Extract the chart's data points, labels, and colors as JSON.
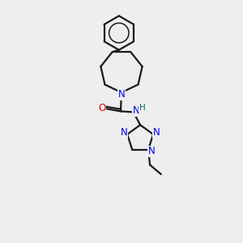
{
  "background_color": "#eeeeee",
  "bond_color": "#1a1a1a",
  "nitrogen_color": "#0000ee",
  "oxygen_color": "#dd0000",
  "hydrogen_color": "#007070",
  "line_width": 1.6,
  "font_size_atom": 8.5,
  "xlim": [
    0,
    10
  ],
  "ylim": [
    0,
    14
  ]
}
